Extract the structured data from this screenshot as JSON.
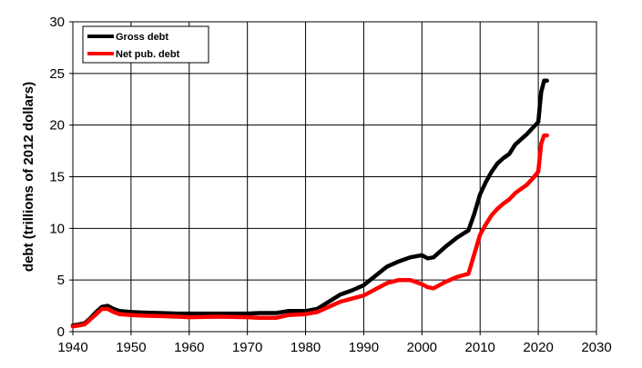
{
  "chart_data": {
    "type": "line",
    "title": "",
    "xlabel": "",
    "ylabel": "debt (trillions of  2012 dollars)",
    "xlim": [
      1940,
      2030
    ],
    "ylim": [
      0,
      30
    ],
    "x_ticks": [
      1940,
      1950,
      1960,
      1970,
      1980,
      1990,
      2000,
      2010,
      2020,
      2030
    ],
    "y_ticks": [
      0,
      5,
      10,
      15,
      20,
      25,
      30
    ],
    "grid": true,
    "legend_position": "top-left",
    "series": [
      {
        "name": "Gross debt",
        "color": "#000000",
        "points": [
          [
            1940,
            0.6
          ],
          [
            1942,
            0.8
          ],
          [
            1943,
            1.3
          ],
          [
            1944,
            1.9
          ],
          [
            1945,
            2.4
          ],
          [
            1946,
            2.5
          ],
          [
            1947,
            2.2
          ],
          [
            1948,
            2.0
          ],
          [
            1950,
            1.9
          ],
          [
            1952,
            1.85
          ],
          [
            1955,
            1.8
          ],
          [
            1958,
            1.75
          ],
          [
            1960,
            1.75
          ],
          [
            1965,
            1.75
          ],
          [
            1970,
            1.75
          ],
          [
            1972,
            1.8
          ],
          [
            1975,
            1.8
          ],
          [
            1977,
            2.0
          ],
          [
            1980,
            2.0
          ],
          [
            1982,
            2.2
          ],
          [
            1984,
            2.9
          ],
          [
            1986,
            3.6
          ],
          [
            1988,
            4.0
          ],
          [
            1990,
            4.5
          ],
          [
            1992,
            5.4
          ],
          [
            1994,
            6.3
          ],
          [
            1996,
            6.8
          ],
          [
            1998,
            7.2
          ],
          [
            2000,
            7.4
          ],
          [
            2001,
            7.1
          ],
          [
            2002,
            7.2
          ],
          [
            2004,
            8.2
          ],
          [
            2006,
            9.1
          ],
          [
            2008,
            9.8
          ],
          [
            2009,
            11.4
          ],
          [
            2010,
            13.3
          ],
          [
            2011,
            14.5
          ],
          [
            2012,
            15.5
          ],
          [
            2013,
            16.3
          ],
          [
            2014,
            16.8
          ],
          [
            2015,
            17.2
          ],
          [
            2016,
            18.1
          ],
          [
            2017,
            18.6
          ],
          [
            2018,
            19.1
          ],
          [
            2019,
            19.7
          ],
          [
            2020,
            20.3
          ],
          [
            2020.5,
            23.2
          ],
          [
            2021,
            24.3
          ],
          [
            2021.5,
            24.3
          ]
        ]
      },
      {
        "name": "Net pub. debt",
        "color": "#ff0000",
        "points": [
          [
            1940,
            0.5
          ],
          [
            1942,
            0.7
          ],
          [
            1943,
            1.2
          ],
          [
            1944,
            1.7
          ],
          [
            1945,
            2.2
          ],
          [
            1946,
            2.2
          ],
          [
            1947,
            1.9
          ],
          [
            1948,
            1.7
          ],
          [
            1950,
            1.6
          ],
          [
            1952,
            1.55
          ],
          [
            1955,
            1.5
          ],
          [
            1958,
            1.45
          ],
          [
            1960,
            1.4
          ],
          [
            1965,
            1.45
          ],
          [
            1970,
            1.4
          ],
          [
            1972,
            1.35
          ],
          [
            1975,
            1.35
          ],
          [
            1977,
            1.6
          ],
          [
            1980,
            1.7
          ],
          [
            1982,
            1.9
          ],
          [
            1984,
            2.4
          ],
          [
            1986,
            2.9
          ],
          [
            1988,
            3.2
          ],
          [
            1990,
            3.5
          ],
          [
            1992,
            4.1
          ],
          [
            1994,
            4.7
          ],
          [
            1996,
            5.0
          ],
          [
            1998,
            5.0
          ],
          [
            2000,
            4.6
          ],
          [
            2001,
            4.3
          ],
          [
            2002,
            4.2
          ],
          [
            2004,
            4.8
          ],
          [
            2006,
            5.3
          ],
          [
            2008,
            5.6
          ],
          [
            2009,
            7.5
          ],
          [
            2010,
            9.4
          ],
          [
            2011,
            10.4
          ],
          [
            2012,
            11.3
          ],
          [
            2013,
            11.9
          ],
          [
            2014,
            12.4
          ],
          [
            2015,
            12.8
          ],
          [
            2016,
            13.4
          ],
          [
            2017,
            13.8
          ],
          [
            2018,
            14.2
          ],
          [
            2019,
            14.8
          ],
          [
            2020,
            15.5
          ],
          [
            2020.5,
            18.2
          ],
          [
            2021,
            19.0
          ],
          [
            2021.5,
            19.0
          ]
        ]
      }
    ]
  }
}
